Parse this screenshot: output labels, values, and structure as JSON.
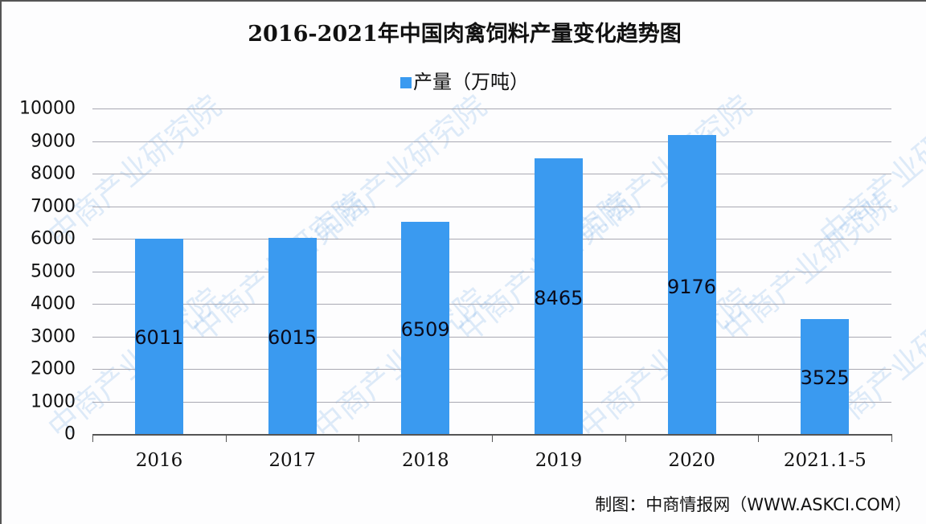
{
  "title": "2016-2021年中国肉禽饲料产量变化趋势图",
  "legend": {
    "label": "产量（万吨）",
    "color": "#3a9af0"
  },
  "source": "制图：中商情报网（WWW.ASKCI.COM）",
  "watermark": "中商产业研究院",
  "y_ticks": [
    "10000",
    "9000",
    "8000",
    "7000",
    "6000",
    "5000",
    "4000",
    "3000",
    "2000",
    "1000",
    "0"
  ],
  "chart_data": {
    "type": "bar",
    "title": "2016-2021年中国肉禽饲料产量变化趋势图",
    "categories": [
      "2016",
      "2017",
      "2018",
      "2019",
      "2020",
      "2021.1-5"
    ],
    "series": [
      {
        "name": "产量（万吨）",
        "values": [
          6011,
          6015,
          6509,
          8465,
          9176,
          3525
        ]
      }
    ],
    "xlabel": "",
    "ylabel": "",
    "ylim": [
      0,
      10000
    ],
    "grid": true,
    "legend_position": "top",
    "bar_color": "#3a9af0"
  },
  "labels": [
    "6011",
    "6015",
    "6509",
    "8465",
    "9176",
    "3525"
  ]
}
